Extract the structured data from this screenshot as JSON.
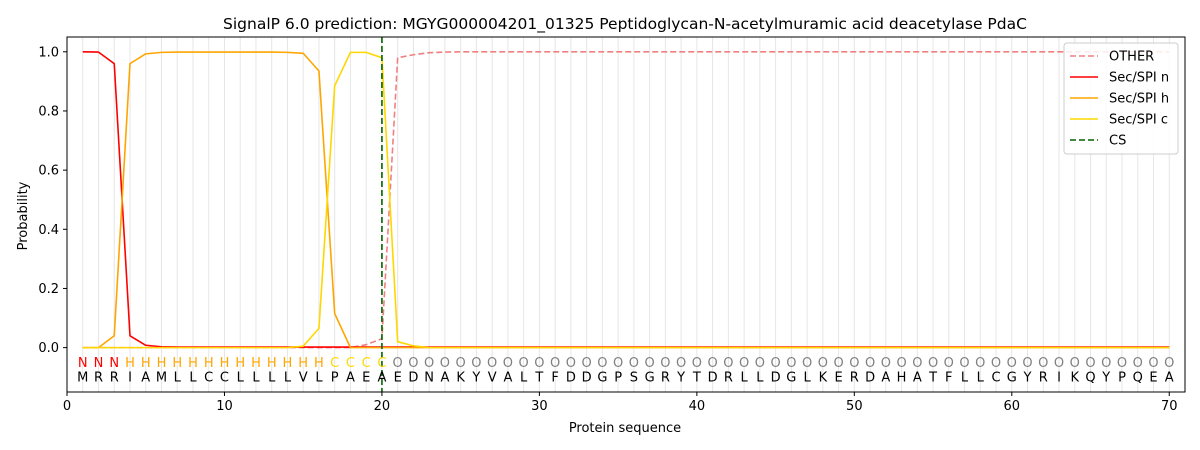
{
  "chart_data": {
    "type": "line",
    "title": "SignalP 6.0 prediction: MGYG000004201_01325 Peptidoglycan-N-acetylmuramic acid deacetylase PdaC",
    "xlabel": "Protein sequence",
    "ylabel": "Probability",
    "xlim": [
      0,
      71
    ],
    "ylim": [
      -0.15,
      1.05
    ],
    "xticks": [
      0,
      10,
      20,
      30,
      40,
      50,
      60,
      70
    ],
    "yticks": [
      "0.0",
      "0.2",
      "0.4",
      "0.6",
      "0.8",
      "1.0"
    ],
    "sequence": [
      "M",
      "R",
      "R",
      "I",
      "A",
      "M",
      "L",
      "L",
      "C",
      "C",
      "L",
      "L",
      "L",
      "L",
      "V",
      "L",
      "P",
      "A",
      "E",
      "A",
      "E",
      "D",
      "N",
      "A",
      "K",
      "Y",
      "V",
      "A",
      "L",
      "T",
      "F",
      "D",
      "D",
      "G",
      "P",
      "S",
      "G",
      "R",
      "Y",
      "T",
      "D",
      "R",
      "L",
      "L",
      "D",
      "G",
      "L",
      "K",
      "E",
      "R",
      "D",
      "A",
      "H",
      "A",
      "T",
      "F",
      "L",
      "L",
      "C",
      "G",
      "Y",
      "R",
      "I",
      "K",
      "Q",
      "Y",
      "P",
      "Q",
      "E",
      "A"
    ],
    "regions": [
      "N",
      "N",
      "N",
      "H",
      "H",
      "H",
      "H",
      "H",
      "H",
      "H",
      "H",
      "H",
      "H",
      "H",
      "H",
      "H",
      "C",
      "C",
      "C",
      "C",
      "O",
      "O",
      "O",
      "O",
      "O",
      "O",
      "O",
      "O",
      "O",
      "O",
      "O",
      "O",
      "O",
      "O",
      "O",
      "O",
      "O",
      "O",
      "O",
      "O",
      "O",
      "O",
      "O",
      "O",
      "O",
      "O",
      "O",
      "O",
      "O",
      "O",
      "O",
      "O",
      "O",
      "O",
      "O",
      "O",
      "O",
      "O",
      "O",
      "O",
      "O",
      "O",
      "O",
      "O",
      "O",
      "O",
      "O",
      "O",
      "O",
      "O"
    ],
    "region_colors": {
      "N": "#ff0000",
      "H": "#ffa500",
      "C": "#ffd700",
      "O": "#808080"
    },
    "cleavage_site": 20,
    "series": [
      {
        "name": "OTHER",
        "color": "#f08080",
        "dash": "dashed",
        "values": [
          0,
          0,
          0,
          0,
          0,
          0,
          0,
          0,
          0,
          0,
          0,
          0,
          0,
          0,
          0,
          0,
          0,
          0,
          0.01,
          0.03,
          0.98,
          0.99,
          0.997,
          0.999,
          1,
          1,
          1,
          1,
          1,
          1,
          1,
          1,
          1,
          1,
          1,
          1,
          1,
          1,
          1,
          1,
          1,
          1,
          1,
          1,
          1,
          1,
          1,
          1,
          1,
          1,
          1,
          1,
          1,
          1,
          1,
          1,
          1,
          1,
          1,
          1,
          1,
          1,
          1,
          1,
          1,
          1,
          1,
          1,
          1,
          1
        ]
      },
      {
        "name": "Sec/SPI n",
        "color": "#ff0000",
        "dash": "solid",
        "values": [
          1,
          0.999,
          0.96,
          0.04,
          0.008,
          0.003,
          0.002,
          0.002,
          0.002,
          0.002,
          0.002,
          0.002,
          0.002,
          0.002,
          0.002,
          0.002,
          0.002,
          0.002,
          0.002,
          0.002,
          0.002,
          0.002,
          0.002,
          0.002,
          0.002,
          0.002,
          0.002,
          0.002,
          0.002,
          0.002,
          0.002,
          0.002,
          0.002,
          0.002,
          0.002,
          0.002,
          0.002,
          0.002,
          0.002,
          0.002,
          0.002,
          0.002,
          0.002,
          0.002,
          0.002,
          0.002,
          0.002,
          0.002,
          0.002,
          0.002,
          0.002,
          0.002,
          0.002,
          0.002,
          0.002,
          0.002,
          0.002,
          0.002,
          0.002,
          0.002,
          0.002,
          0.002,
          0.002,
          0.002,
          0.002,
          0.002,
          0.002,
          0.002,
          0.002,
          0.002
        ]
      },
      {
        "name": "Sec/SPI h",
        "color": "#ffa500",
        "dash": "solid",
        "values": [
          0,
          0,
          0.04,
          0.96,
          0.993,
          0.998,
          0.999,
          0.999,
          0.999,
          0.999,
          0.999,
          0.999,
          0.999,
          0.998,
          0.995,
          0.935,
          0.115,
          0,
          0,
          0,
          0,
          0,
          0,
          0,
          0,
          0,
          0,
          0,
          0,
          0,
          0,
          0,
          0,
          0,
          0,
          0,
          0,
          0,
          0,
          0,
          0,
          0,
          0,
          0,
          0,
          0,
          0,
          0,
          0,
          0,
          0,
          0,
          0,
          0,
          0,
          0,
          0,
          0,
          0,
          0,
          0,
          0,
          0,
          0,
          0,
          0,
          0,
          0,
          0,
          0
        ]
      },
      {
        "name": "Sec/SPI c",
        "color": "#ffd700",
        "dash": "solid",
        "values": [
          0,
          0,
          0,
          0,
          0,
          0,
          0,
          0,
          0,
          0,
          0,
          0,
          0,
          0,
          0.005,
          0.065,
          0.885,
          0.998,
          0.998,
          0.98,
          0.02,
          0.006,
          0,
          0,
          0,
          0,
          0,
          0,
          0,
          0,
          0,
          0,
          0,
          0,
          0,
          0,
          0,
          0,
          0,
          0,
          0,
          0,
          0,
          0,
          0,
          0,
          0,
          0,
          0,
          0,
          0,
          0,
          0,
          0,
          0,
          0,
          0,
          0,
          0,
          0,
          0,
          0,
          0,
          0,
          0,
          0,
          0,
          0,
          0,
          0
        ]
      },
      {
        "name": "CS",
        "color": "#006400",
        "dash": "dashed",
        "values": []
      }
    ],
    "legend_position": "top-right",
    "grid": "vertical"
  }
}
